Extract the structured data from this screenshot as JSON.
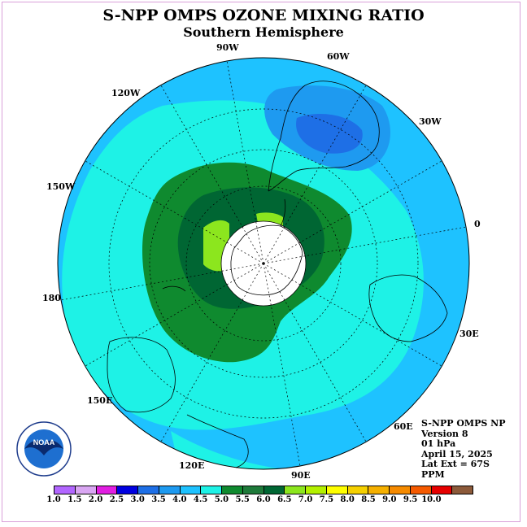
{
  "title": "S-NPP OMPS OZONE MIXING RATIO",
  "subtitle": "Southern Hemisphere",
  "info": {
    "line1": "S-NPP OMPS NP",
    "line2": "Version 8",
    "line3": "01 hPa",
    "line4": "April 15, 2025",
    "line5": "Lat Ext = 67S",
    "line6": "PPM"
  },
  "logo_text": "NOAA",
  "longitude_labels": [
    "90W",
    "60W",
    "30W",
    "0",
    "30E",
    "60E",
    "90E",
    "120E",
    "150E",
    "180",
    "150W",
    "120W"
  ],
  "color_scale": {
    "colors": [
      "#b266ff",
      "#d9a6f2",
      "#e11ee1",
      "#0000e0",
      "#1e6fe6",
      "#1e9af0",
      "#1ec2ff",
      "#1ef2e6",
      "#0f8a2f",
      "#1e7a3a",
      "#006633",
      "#8ce61e",
      "#b3f000",
      "#ffff00",
      "#f5d000",
      "#f5b000",
      "#f58a00",
      "#f55a00",
      "#e60000",
      "#8c5a3a"
    ],
    "labels": [
      "1.0",
      "1.5",
      "2.0",
      "2.5",
      "3.0",
      "3.5",
      "4.0",
      "4.5",
      "5.0",
      "5.5",
      "6.0",
      "6.5",
      "7.0",
      "7.5",
      "8.0",
      "8.5",
      "9.0",
      "9.5",
      "10.0"
    ]
  }
}
